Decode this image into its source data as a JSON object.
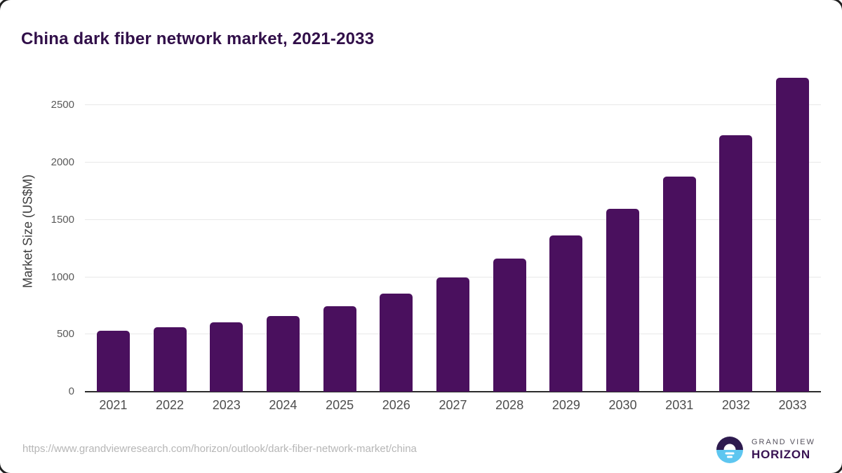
{
  "page": {
    "title": "China dark fiber network market, 2021-2033"
  },
  "chart_data": {
    "type": "bar",
    "title": "China dark fiber network market, 2021-2033",
    "categories": [
      "2021",
      "2022",
      "2023",
      "2024",
      "2025",
      "2026",
      "2027",
      "2028",
      "2029",
      "2030",
      "2031",
      "2032",
      "2033"
    ],
    "values": [
      535,
      565,
      605,
      660,
      745,
      855,
      995,
      1160,
      1365,
      1595,
      1880,
      2240,
      2740
    ],
    "xlabel": "",
    "ylabel": "Market Size (US$M)",
    "ylim": [
      0,
      2820
    ],
    "yticks": [
      0,
      500,
      1000,
      1500,
      2000,
      2500
    ],
    "grid": true,
    "legend": false,
    "bar_color": "#4a105e"
  },
  "footer": {
    "source_url": "https://www.grandviewresearch.com/horizon/outlook/dark-fiber-network-market/china",
    "logo": {
      "line1": "GRAND VIEW",
      "line2": "HORIZON"
    }
  },
  "colors": {
    "bar": "#4a105e",
    "title": "#310f49",
    "gridline": "#e8e8e8",
    "axis_line": "#2b2b2b",
    "y_tick_label": "#595959",
    "x_tick_label": "#4d4d4d",
    "axis_title": "#3d3d3d",
    "source_url_text": "#b6b6b6",
    "logo_dark_half": "#2e1b4f",
    "logo_blue_half": "#5ec6f0",
    "logo_text_top": "#56525e",
    "logo_text_bottom": "#391353"
  }
}
